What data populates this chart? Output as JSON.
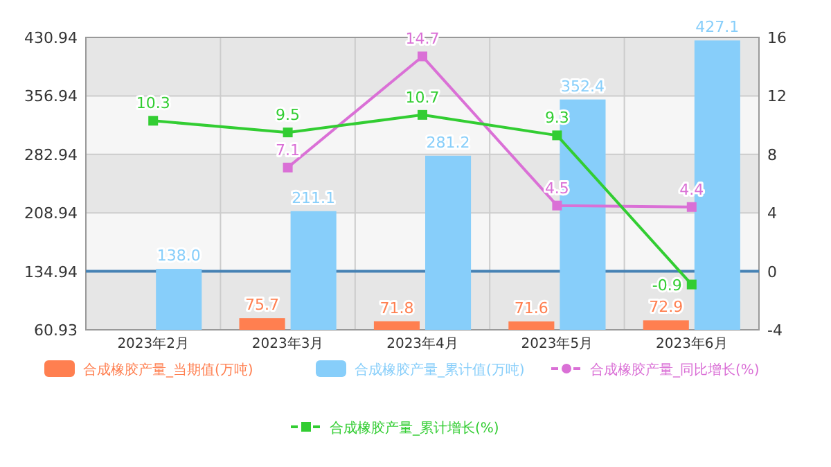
{
  "chart_data": {
    "type": "bar",
    "categories": [
      "2023年2月",
      "2023年3月",
      "2023年4月",
      "2023年5月",
      "2023年6月"
    ],
    "series": [
      {
        "name": "合成橡胶产量_当期值(万吨)",
        "color": "#ff7f50",
        "values": [
          null,
          75.7,
          71.8,
          71.6,
          72.9
        ],
        "value_labels": [
          null,
          "75.7",
          "71.8",
          "71.6",
          "72.9"
        ]
      },
      {
        "name": "合成橡胶产量_累计值(万吨)",
        "color": "#87cefa",
        "values": [
          138.0,
          211.1,
          281.2,
          352.4,
          427.1
        ],
        "value_labels": [
          "138.0",
          "211.1",
          "281.2",
          "352.4",
          "427.1"
        ]
      },
      {
        "name": "合成橡胶产量_同比增长(%)",
        "type": "line",
        "axis": "y2",
        "color": "#da70d6",
        "values": [
          null,
          7.1,
          14.7,
          4.5,
          4.4
        ],
        "value_labels": [
          null,
          "7.1",
          "14.7",
          "4.5",
          "4.4"
        ]
      },
      {
        "name": "合成橡胶产量_累计增长(%)",
        "type": "line",
        "axis": "y2",
        "color": "#32cd32",
        "values": [
          10.3,
          9.5,
          10.7,
          9.3,
          -0.9
        ],
        "value_labels": [
          "10.3",
          "9.5",
          "10.7",
          "9.3",
          "-0.9"
        ]
      }
    ],
    "ylim": [
      60.93,
      430.94
    ],
    "yticks": [
      60.93,
      134.94,
      208.94,
      282.94,
      356.94,
      430.94
    ],
    "y2lim": [
      -4,
      16
    ],
    "y2ticks": [
      -4,
      0,
      4,
      8,
      12,
      16
    ],
    "ref_lines": [
      {
        "axis": "y2",
        "value": 0,
        "color": "#4682b4"
      }
    ],
    "grid": true,
    "legend": "bottom",
    "marker": "square"
  }
}
